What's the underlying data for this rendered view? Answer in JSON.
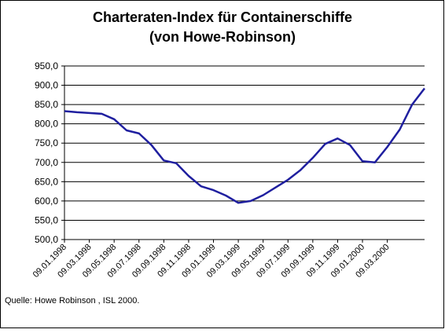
{
  "chart_data": {
    "type": "line",
    "title": "Charteraten-Index für Containerschiffe",
    "subtitle": "(von Howe-Robinson)",
    "source": "Quelle: Howe Robinson , ISL 2000.",
    "categories": [
      "09.01.1998",
      null,
      "09.03.1998",
      null,
      "09.05.1998",
      null,
      "09.07.1998",
      null,
      "09.09.1998",
      null,
      "09.11.1998",
      null,
      "09.01.1999",
      null,
      "09.03.1999",
      null,
      "09.05.1999",
      null,
      "09.07.1999",
      null,
      "09.09.1999",
      null,
      "09.11.1999",
      null,
      "09.01.2000",
      null,
      "09.03.2000",
      null,
      null,
      null
    ],
    "values": [
      833,
      830,
      828,
      826,
      812,
      783,
      775,
      745,
      705,
      698,
      665,
      638,
      628,
      614,
      595,
      600,
      615,
      635,
      655,
      680,
      712,
      748,
      762,
      745,
      703,
      700,
      740,
      785,
      850,
      892
    ],
    "color": "#1f1f9f",
    "ylim": [
      500,
      950
    ],
    "yticks": [
      {
        "value": 500,
        "label": "500,0"
      },
      {
        "value": 550,
        "label": "550,0"
      },
      {
        "value": 600,
        "label": "600,0"
      },
      {
        "value": 650,
        "label": "650,0"
      },
      {
        "value": 700,
        "label": "700,0"
      },
      {
        "value": 750,
        "label": "750,0"
      },
      {
        "value": 800,
        "label": "800,0"
      },
      {
        "value": 850,
        "label": "850,0"
      },
      {
        "value": 900,
        "label": "900,0"
      },
      {
        "value": 950,
        "label": "950,0"
      }
    ],
    "grid": true
  }
}
